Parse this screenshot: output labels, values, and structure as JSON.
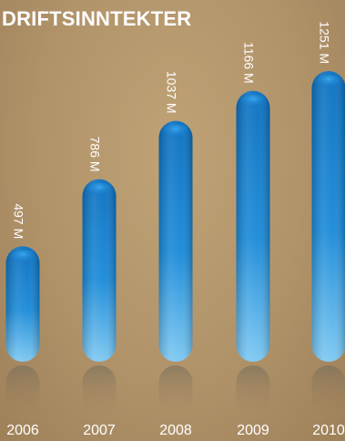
{
  "chart_data": {
    "type": "bar",
    "title": "DRIFTSINNTEKTER",
    "categories": [
      "2006",
      "2007",
      "2008",
      "2009",
      "2010"
    ],
    "values": [
      497,
      786,
      1037,
      1166,
      1251
    ],
    "value_labels": [
      "497 M",
      "786 M",
      "1037 M",
      "1166 M",
      "1251 M"
    ],
    "unit": "M",
    "xlabel": "",
    "ylabel": "",
    "ylim": [
      0,
      1251
    ],
    "grid": false,
    "legend": "none",
    "colors": {
      "bar_top": "#0a6fbf",
      "bar_mid": "#1a8ad8",
      "bar_bottom": "#7cc8f2",
      "label_text": "#ffffff",
      "year_text": "#ffffff"
    }
  }
}
